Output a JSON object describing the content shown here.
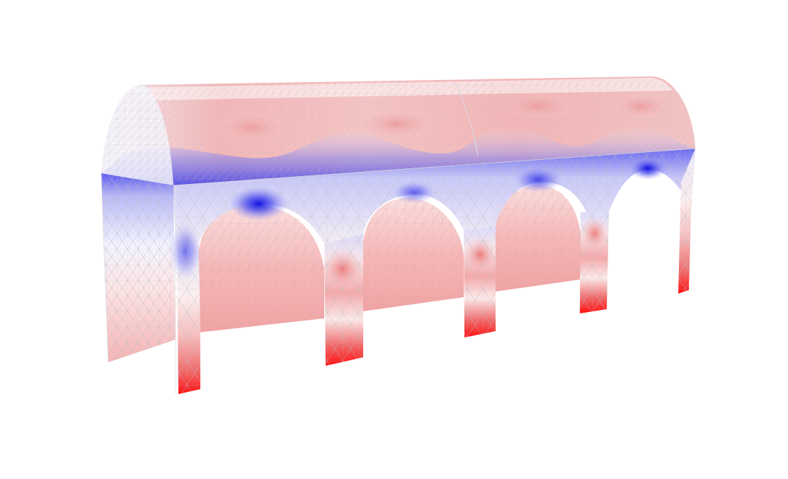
{
  "figure": {
    "subject": "finite-element-mesh-of-arcade-with-barrel-vault",
    "colormap": {
      "positive": "#ff1a1a",
      "neutral": "#ffffff",
      "negative": "#2a2ae8"
    },
    "mesh_line_color": "#b9b9c4",
    "arch_openings": 4,
    "piers": 5
  }
}
